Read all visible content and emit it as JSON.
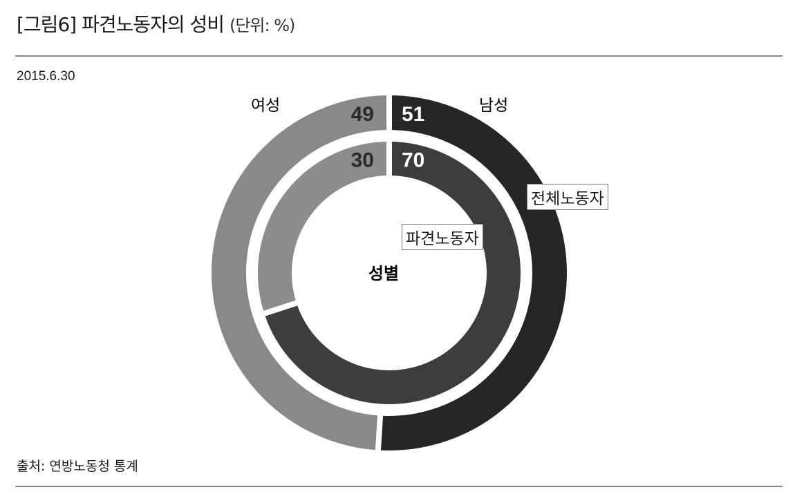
{
  "header": {
    "title": "[그림6] 파견노동자의 성비",
    "unit": "(단위: %)"
  },
  "date": "2015.6.30",
  "source": "출처: 연방노동청 통계",
  "chart_data": {
    "type": "donut",
    "center_label": "성별",
    "categories": [
      "남성",
      "여성"
    ],
    "colors": {
      "outer": [
        "#262626",
        "#898989"
      ],
      "inner": [
        "#3d3d3d",
        "#8c8c8c"
      ]
    },
    "rings": [
      {
        "name": "전체노동자",
        "position": "outer",
        "values": [
          51,
          49
        ]
      },
      {
        "name": "파견노동자",
        "position": "inner",
        "values": [
          70,
          30
        ]
      }
    ]
  }
}
